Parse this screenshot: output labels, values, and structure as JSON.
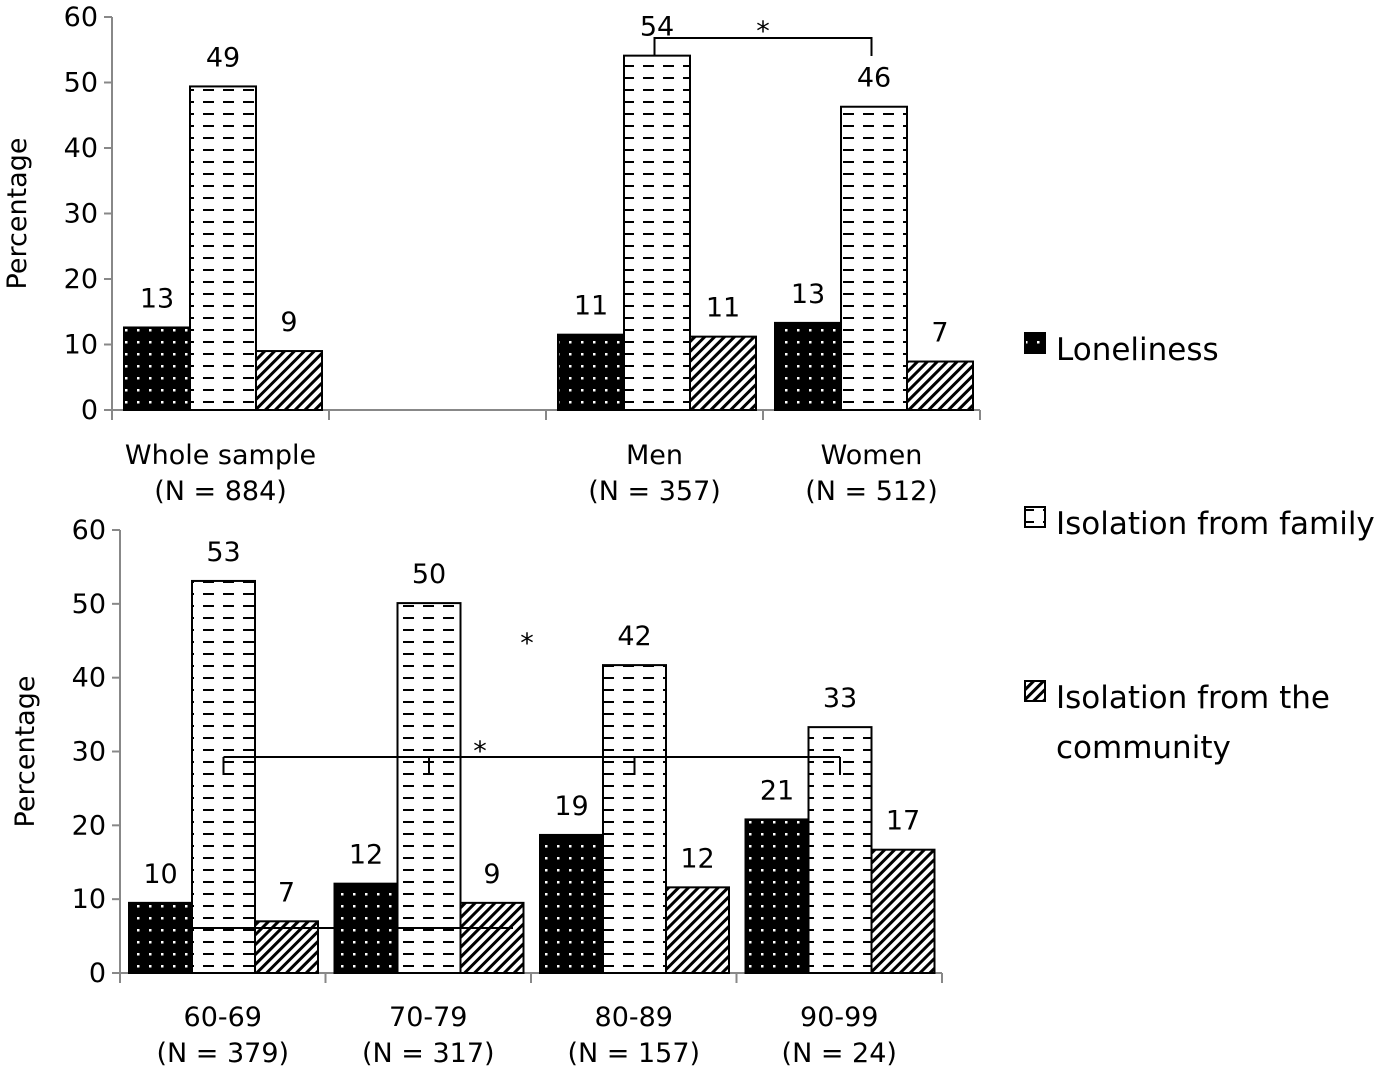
{
  "chart_data": [
    {
      "type": "bar",
      "ylabel": "Percentage",
      "ylim": [
        0,
        60
      ],
      "yticks": [
        "0",
        "10",
        "20",
        "30",
        "40",
        "50",
        "60"
      ],
      "categories": [
        [
          "Whole sample",
          "(N = 884)"
        ],
        [
          "",
          ""
        ],
        [
          "Men",
          "(N = 357)"
        ],
        [
          "Women",
          "(N = 512)"
        ]
      ],
      "series": [
        {
          "name": "Loneliness",
          "values": [
            12.6,
            null,
            11.5,
            13.3
          ],
          "labels": [
            "13",
            "",
            "11",
            "13"
          ]
        },
        {
          "name": "Isolation from family",
          "values": [
            49.4,
            null,
            54.1,
            46.3
          ],
          "labels": [
            "49",
            "",
            "54",
            "46"
          ]
        },
        {
          "name": "Isolation from the community",
          "values": [
            9.0,
            null,
            11.2,
            7.4
          ],
          "labels": [
            "9",
            "",
            "11",
            "7"
          ]
        }
      ],
      "annotations": [
        {
          "text": "*",
          "between": [
            "Men",
            "Women"
          ],
          "series": "Isolation from family"
        }
      ]
    },
    {
      "type": "bar",
      "ylabel": "Percentage",
      "ylim": [
        0,
        60
      ],
      "yticks": [
        "0",
        "10",
        "20",
        "30",
        "40",
        "50",
        "60"
      ],
      "categories": [
        [
          "60-69",
          "(N = 379)"
        ],
        [
          "70-79",
          "(N = 317)"
        ],
        [
          "80-89",
          "(N = 157)"
        ],
        [
          "90-99",
          "(N = 24)"
        ]
      ],
      "series": [
        {
          "name": "Loneliness",
          "values": [
            9.5,
            12.1,
            18.7,
            20.8
          ],
          "labels": [
            "10",
            "12",
            "19",
            "21"
          ]
        },
        {
          "name": "Isolation from family",
          "values": [
            53.1,
            50.1,
            41.7,
            33.3
          ],
          "labels": [
            "53",
            "50",
            "42",
            "33"
          ]
        },
        {
          "name": "Isolation from the community",
          "values": [
            7.0,
            9.5,
            11.6,
            16.7
          ],
          "labels": [
            "7",
            "9",
            "12",
            "17"
          ]
        }
      ],
      "annotations": [
        {
          "text": "*",
          "series": "Isolation from family"
        },
        {
          "text": "*",
          "series": "Loneliness"
        }
      ]
    }
  ],
  "legend": {
    "position": "right",
    "items": [
      [
        "Loneliness"
      ],
      [
        "Isolation from family"
      ],
      [
        "Isolation from the",
        "community"
      ]
    ]
  }
}
